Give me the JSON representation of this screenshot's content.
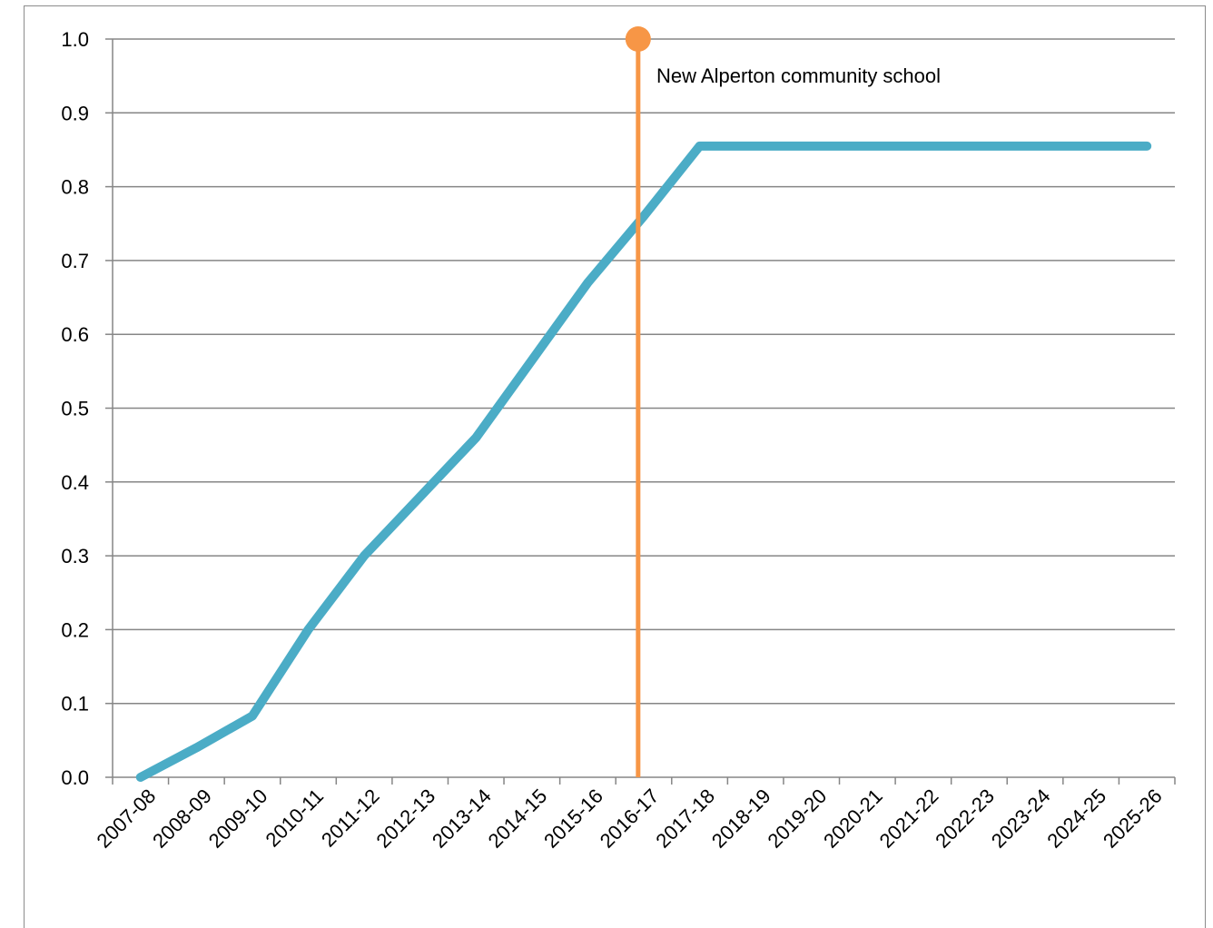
{
  "chart_data": {
    "type": "line",
    "title": "",
    "xlabel": "",
    "ylabel": "",
    "categories": [
      "2007-08",
      "2008-09",
      "2009-10",
      "2010-11",
      "2011-12",
      "2012-13",
      "2013-14",
      "2014-15",
      "2015-16",
      "2016-17",
      "2017-18",
      "2018-19",
      "2019-20",
      "2020-21",
      "2021-22",
      "2022-23",
      "2023-24",
      "2024-25",
      "2025-26"
    ],
    "y_tick_labels": [
      "0.0",
      "0.1",
      "0.2",
      "0.3",
      "0.4",
      "0.5",
      "0.6",
      "0.7",
      "0.8",
      "0.9",
      "1.0"
    ],
    "ylim": [
      0,
      1.0
    ],
    "grid": true,
    "series": [
      {
        "color": "#4bacc6",
        "values": [
          0.0,
          0.04,
          0.083,
          0.2,
          0.3,
          0.38,
          0.46,
          0.565,
          0.67,
          0.76,
          0.855,
          0.855,
          0.855,
          0.855,
          0.855,
          0.855,
          0.855,
          0.855,
          0.855
        ]
      }
    ],
    "annotation": {
      "text": "New Alperton community school",
      "x_position": 8.9,
      "color": "#f79646"
    }
  }
}
